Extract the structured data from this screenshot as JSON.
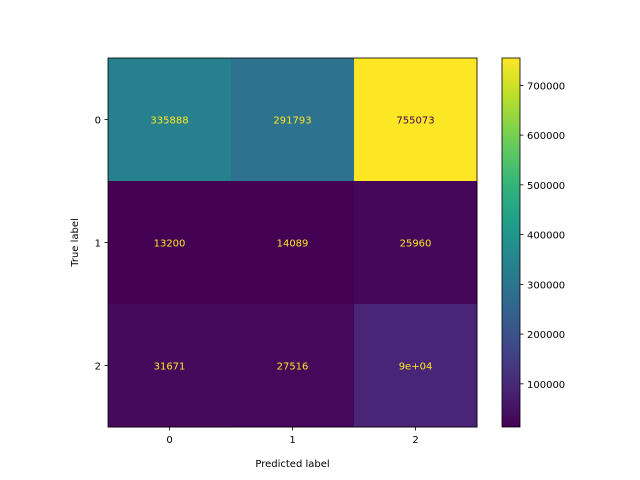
{
  "chart_data": {
    "type": "heatmap",
    "title": "",
    "xlabel": "Predicted label",
    "ylabel": "True label",
    "x_categories": [
      "0",
      "1",
      "2"
    ],
    "y_categories": [
      "0",
      "1",
      "2"
    ],
    "values": [
      [
        335888,
        291793,
        755073
      ],
      [
        13200,
        14089,
        25960
      ],
      [
        31671,
        27516,
        90000
      ]
    ],
    "cell_labels": [
      [
        "335888",
        "291793",
        "755073"
      ],
      [
        "13200",
        "14089",
        "25960"
      ],
      [
        "31671",
        "27516",
        "9e+04"
      ]
    ],
    "colormap": "viridis",
    "color_range": [
      13200,
      755073
    ],
    "colorbar_ticks": [
      100000,
      200000,
      300000,
      400000,
      500000,
      600000,
      700000
    ],
    "colorbar_tick_labels": [
      "100000",
      "200000",
      "300000",
      "400000",
      "500000",
      "600000",
      "700000"
    ],
    "annotation_color_on_dark": "#fde725",
    "annotation_color_on_light": "#440154",
    "grid": false,
    "colorbar_placement": "right"
  }
}
